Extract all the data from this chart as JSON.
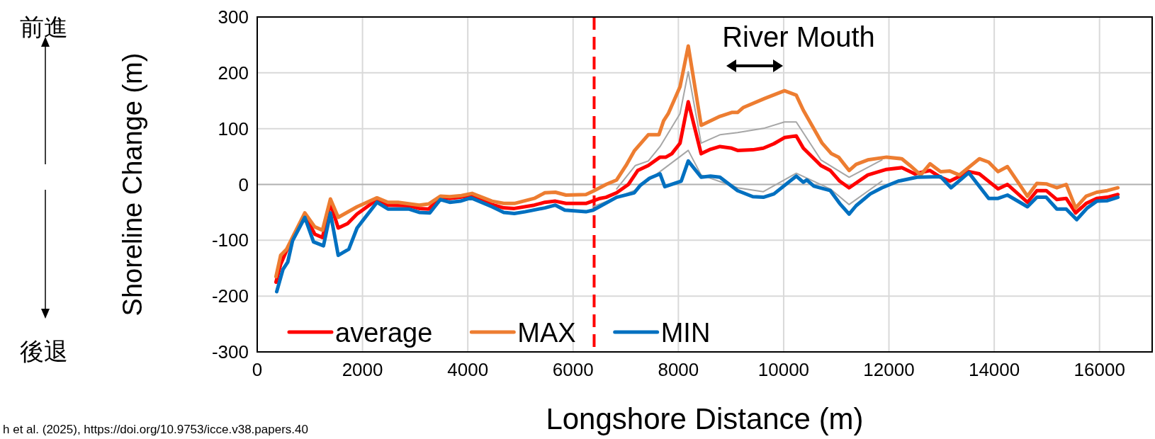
{
  "chart_data": {
    "type": "line",
    "xlabel": "Longshore Distance (m)",
    "ylabel": "Shoreline Change (m)",
    "xlim": [
      0,
      17000
    ],
    "xticks": [
      0,
      2000,
      4000,
      6000,
      8000,
      10000,
      12000,
      14000,
      16000
    ],
    "ylim": [
      -300,
      300
    ],
    "yticks": [
      -300,
      -200,
      -100,
      0,
      100,
      200,
      300
    ],
    "grid": true,
    "legend": "bottom left",
    "line_style": "solid",
    "ref_lines": [
      {
        "axis": "x",
        "value": 6400,
        "color": "#ff0000",
        "line_style": "dashed"
      }
    ],
    "annotations": [
      "River Mouth",
      "前進",
      "後退",
      "h et al. (2025), https://doi.org/10.9753/icce.v38.papers.40"
    ],
    "series": [
      {
        "color": "#a6a6a6",
        "x": [
          6827,
          7184,
          7429,
          7652,
          8031,
          8188,
          8433,
          8790,
          9124,
          9637,
          10016,
          10239,
          10708,
          11243,
          11867
        ],
        "values": [
          -8,
          34,
          42,
          68,
          127,
          202,
          74,
          89,
          93,
          101,
          112,
          112,
          44,
          13,
          44
        ]
      },
      {
        "color": "#a6a6a6",
        "x": [
          6381,
          7162,
          7652,
          8188,
          8433,
          9124,
          9615,
          10239,
          10886,
          11243,
          11867
        ],
        "values": [
          -40,
          -11,
          23,
          61,
          17,
          -6,
          -13,
          20,
          -8,
          -36,
          6
        ]
      },
      {
        "name": "average",
        "color": "#ff0000",
        "x": [
          357,
          446,
          558,
          669,
          905,
          1093,
          1240,
          1391,
          1539,
          1717,
          1896,
          2275,
          2484,
          2877,
          3077,
          3256,
          3479,
          3657,
          3858,
          4081,
          4460,
          4683,
          4884,
          5263,
          5464,
          5664,
          5865,
          6244,
          6512,
          6627,
          6827,
          7050,
          7228,
          7429,
          7652,
          7764,
          7875,
          8031,
          8188,
          8433,
          8611,
          8790,
          9013,
          9124,
          9414,
          9615,
          9815,
          10016,
          10239,
          10373,
          10708,
          10886,
          11064,
          11243,
          11599,
          11955,
          12245,
          12490,
          12780,
          12981,
          13159,
          13516,
          13717,
          14074,
          14252,
          14631,
          14810,
          14988,
          15189,
          15367,
          15546,
          15746,
          15947,
          16148,
          16348
        ],
        "values": [
          -175,
          -143,
          -118,
          -99,
          -55,
          -89,
          -95,
          -34,
          -78,
          -70,
          -53,
          -27,
          -37,
          -38,
          -43,
          -44,
          -23,
          -25,
          -23,
          -19,
          -36,
          -42,
          -43,
          -37,
          -32,
          -30,
          -34,
          -34,
          -25,
          -23,
          -15,
          0,
          25,
          34,
          49,
          49,
          55,
          74,
          148,
          55,
          63,
          68,
          65,
          61,
          62,
          65,
          73,
          84,
          87,
          65,
          34,
          25,
          6,
          -6,
          17,
          27,
          30,
          19,
          25,
          13,
          6,
          23,
          19,
          -8,
          0,
          -32,
          -11,
          -11,
          -27,
          -25,
          -51,
          -34,
          -25,
          -23,
          -18
        ]
      },
      {
        "name": "MAX",
        "color": "#ed7d31",
        "x": [
          357,
          446,
          558,
          669,
          905,
          1093,
          1240,
          1391,
          1539,
          1896,
          2275,
          2484,
          2676,
          3077,
          3256,
          3479,
          3657,
          3880,
          4081,
          4460,
          4683,
          4884,
          5263,
          5464,
          5664,
          5865,
          6244,
          6381,
          6627,
          6827,
          7006,
          7162,
          7429,
          7630,
          7719,
          7808,
          8031,
          8188,
          8433,
          8790,
          9013,
          9124,
          9236,
          9637,
          10016,
          10239,
          10373,
          10730,
          10908,
          11042,
          11243,
          11376,
          11599,
          11955,
          12245,
          12401,
          12602,
          12780,
          12981,
          13159,
          13338,
          13717,
          13895,
          14074,
          14252,
          14631,
          14810,
          14988,
          15189,
          15367,
          15546,
          15746,
          15947,
          16148,
          16348
        ],
        "values": [
          -165,
          -127,
          -116,
          -95,
          -51,
          -76,
          -82,
          -26,
          -59,
          -40,
          -24,
          -32,
          -32,
          -37,
          -35,
          -21,
          -22,
          -20,
          -16,
          -30,
          -34,
          -34,
          -25,
          -15,
          -14,
          -19,
          -18,
          -12,
          0,
          8,
          34,
          60,
          89,
          89,
          114,
          127,
          175,
          248,
          106,
          122,
          129,
          129,
          138,
          154,
          168,
          160,
          133,
          74,
          55,
          49,
          25,
          36,
          44,
          49,
          46,
          34,
          17,
          37,
          23,
          24,
          17,
          46,
          40,
          23,
          32,
          -21,
          2,
          1,
          -6,
          0,
          -42,
          -21,
          -14,
          -11,
          -6
        ]
      },
      {
        "name": "MIN",
        "color": "#0070c0",
        "x": [
          370,
          490,
          580,
          670,
          905,
          1070,
          1258,
          1391,
          1539,
          1740,
          1896,
          2275,
          2484,
          2877,
          3077,
          3278,
          3479,
          3657,
          3858,
          4059,
          4460,
          4683,
          4884,
          5084,
          5464,
          5664,
          5843,
          6244,
          6381,
          6827,
          7162,
          7273,
          7452,
          7652,
          7742,
          8054,
          8188,
          8433,
          8611,
          8790,
          9124,
          9414,
          9615,
          9815,
          10239,
          10373,
          10440,
          10574,
          10886,
          11064,
          11243,
          11376,
          11644,
          11866,
          12178,
          12535,
          12981,
          13182,
          13516,
          13895,
          14074,
          14252,
          14631,
          14810,
          14988,
          15189,
          15367,
          15568,
          15769,
          15947,
          16148,
          16348
        ],
        "values": [
          -192,
          -152,
          -139,
          -101,
          -59,
          -103,
          -110,
          -51,
          -127,
          -116,
          -78,
          -32,
          -44,
          -44,
          -50,
          -51,
          -27,
          -32,
          -30,
          -24,
          -40,
          -50,
          -52,
          -49,
          -42,
          -37,
          -46,
          -49,
          -46,
          -23,
          -15,
          -2,
          11,
          19,
          -4,
          6,
          42,
          13,
          15,
          13,
          -11,
          -22,
          -23,
          -17,
          15,
          4,
          8,
          -3,
          -11,
          -34,
          -53,
          -38,
          -17,
          -6,
          6,
          13,
          14,
          -6,
          21,
          -25,
          -25,
          -19,
          -40,
          -23,
          -23,
          -44,
          -44,
          -63,
          -42,
          -30,
          -29,
          -23
        ]
      }
    ]
  }
}
